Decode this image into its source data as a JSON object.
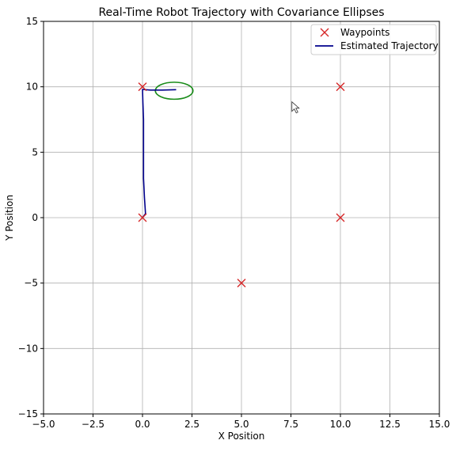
{
  "chart_data": {
    "type": "scatter",
    "title": "Real-Time Robot Trajectory with Covariance Ellipses",
    "xlabel": "X Position",
    "ylabel": "Y Position",
    "xlim": [
      -5,
      15
    ],
    "ylim": [
      -15,
      15
    ],
    "xticks": [
      -5,
      -2.5,
      0,
      2.5,
      5,
      7.5,
      10,
      12.5,
      15
    ],
    "xtick_labels": [
      "−5.0",
      "−2.5",
      "0.0",
      "2.5",
      "5.0",
      "7.5",
      "10.0",
      "12.5",
      "15.0"
    ],
    "yticks": [
      -15,
      -10,
      -5,
      0,
      5,
      10,
      15
    ],
    "ytick_labels": [
      "−15",
      "−10",
      "−5",
      "0",
      "5",
      "10",
      "15"
    ],
    "grid": true,
    "legend_position": "top-right",
    "series": [
      {
        "name": "Waypoints",
        "kind": "marker-x",
        "color": "#d62728",
        "points": [
          [
            0,
            0
          ],
          [
            10,
            0
          ],
          [
            10,
            10
          ],
          [
            0,
            10
          ],
          [
            5,
            -5
          ]
        ]
      },
      {
        "name": "Estimated Trajectory",
        "kind": "line",
        "color": "#00008b",
        "points": [
          [
            0,
            0
          ],
          [
            0.15,
            0.3
          ],
          [
            0.1,
            1.5
          ],
          [
            0.05,
            3.0
          ],
          [
            0.05,
            4.5
          ],
          [
            0.05,
            6.0
          ],
          [
            0.05,
            7.5
          ],
          [
            0.02,
            8.8
          ],
          [
            0.0,
            9.8
          ],
          [
            0.4,
            9.75
          ],
          [
            1.0,
            9.75
          ],
          [
            1.7,
            9.78
          ]
        ]
      }
    ],
    "covariance_ellipses": [
      {
        "center": [
          1.6,
          9.7
        ],
        "rx": 0.95,
        "ry": 0.65,
        "color": "#1a8c1a"
      }
    ],
    "cursor_position": [
      7.55,
      8.85
    ]
  }
}
